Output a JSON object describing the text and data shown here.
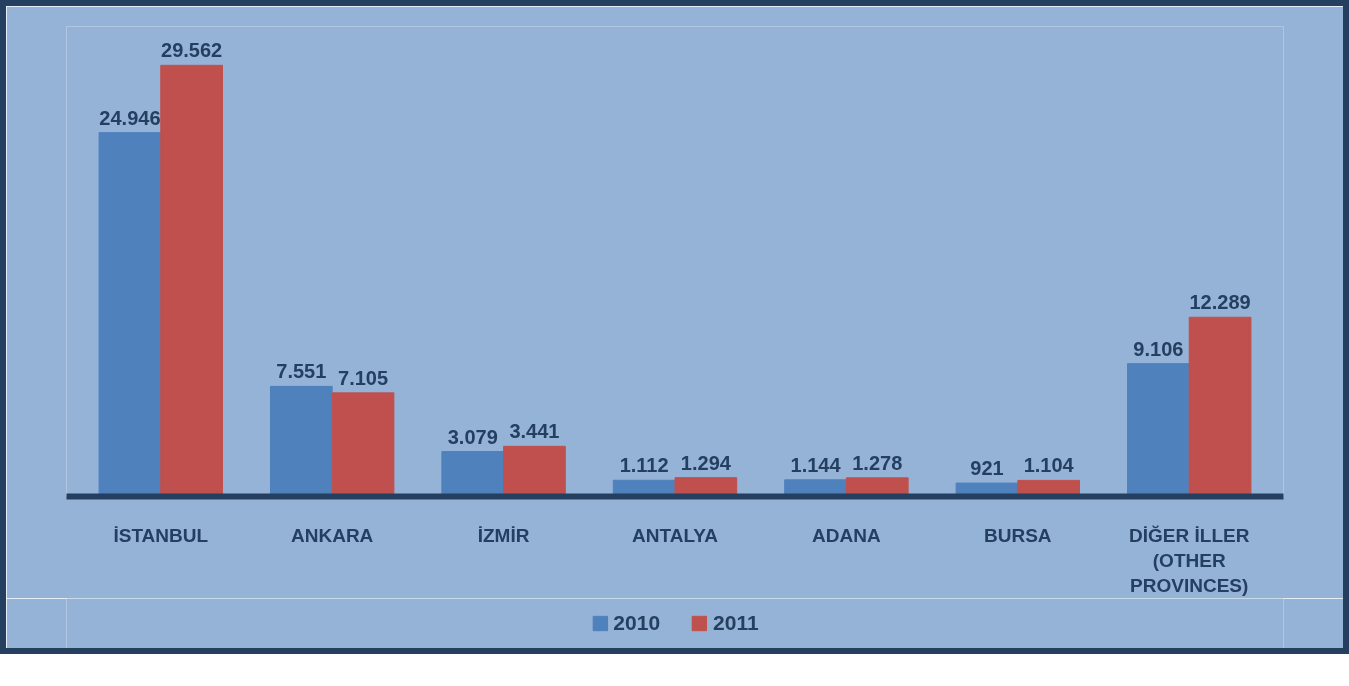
{
  "chart_data": {
    "type": "bar",
    "categories": [
      "İSTANBUL",
      "ANKARA",
      "İZMİR",
      "ANTALYA",
      "ADANA",
      "BURSA",
      "DİĞER İLLER (OTHER PROVINCES)"
    ],
    "series": [
      {
        "name": "2010",
        "color": "#4f81bd",
        "values": [
          24946,
          7551,
          3079,
          1112,
          1144,
          921,
          9106
        ],
        "value_labels": [
          "24.946",
          "7.551",
          "3.079",
          "1.112",
          "1.144",
          "921",
          "9.106"
        ]
      },
      {
        "name": "2011",
        "color": "#c0504d",
        "values": [
          29562,
          7105,
          3441,
          1294,
          1278,
          1104,
          12289
        ],
        "value_labels": [
          "29.562",
          "7.105",
          "3.441",
          "1.294",
          "1.278",
          "1.104",
          "12.289"
        ]
      }
    ],
    "legend": "bottom"
  }
}
